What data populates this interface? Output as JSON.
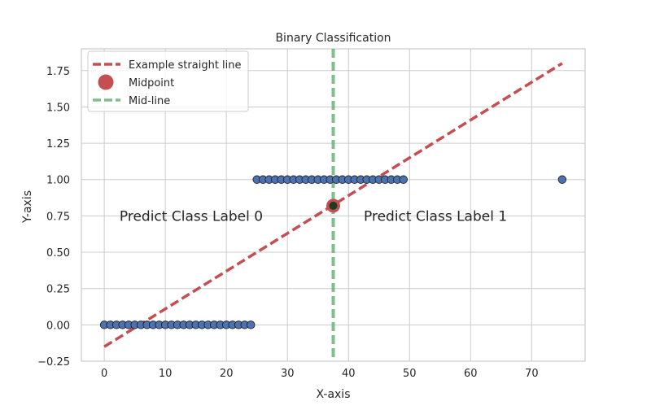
{
  "chart_data": {
    "type": "scatter",
    "title": "Binary Classification",
    "xlabel": "X-axis",
    "ylabel": "Y-axis",
    "xlim": [
      -3.75,
      78.75
    ],
    "ylim": [
      -0.25,
      1.9
    ],
    "x_ticks": [
      0,
      10,
      20,
      30,
      40,
      50,
      60,
      70
    ],
    "x_tick_labels": [
      "0",
      "10",
      "20",
      "30",
      "40",
      "50",
      "60",
      "70"
    ],
    "y_ticks": [
      -0.25,
      0.0,
      0.25,
      0.5,
      0.75,
      1.0,
      1.25,
      1.5,
      1.75
    ],
    "y_tick_labels": [
      "−0.25",
      "0.00",
      "0.25",
      "0.50",
      "0.75",
      "1.00",
      "1.25",
      "1.50",
      "1.75"
    ],
    "grid": true,
    "legend_position": "top-left",
    "legend": [
      {
        "label": "Example straight line",
        "marker": "dashed-line",
        "color": "#c44e52"
      },
      {
        "label": "Midpoint",
        "marker": "circle",
        "color": "#c44e52"
      },
      {
        "label": "Mid-line",
        "marker": "dashed-line",
        "color": "#55a868"
      }
    ],
    "points": {
      "color": "#4c72b0",
      "edge_color": "#1a1a1a",
      "x": [
        0,
        1,
        2,
        3,
        4,
        5,
        6,
        7,
        8,
        9,
        10,
        11,
        12,
        13,
        14,
        15,
        16,
        17,
        18,
        19,
        20,
        21,
        22,
        23,
        24,
        25,
        26,
        27,
        28,
        29,
        30,
        31,
        32,
        33,
        34,
        35,
        36,
        37,
        38,
        39,
        40,
        41,
        42,
        43,
        44,
        45,
        46,
        47,
        48,
        49,
        75
      ],
      "y": [
        0,
        0,
        0,
        0,
        0,
        0,
        0,
        0,
        0,
        0,
        0,
        0,
        0,
        0,
        0,
        0,
        0,
        0,
        0,
        0,
        0,
        0,
        0,
        0,
        0,
        1,
        1,
        1,
        1,
        1,
        1,
        1,
        1,
        1,
        1,
        1,
        1,
        1,
        1,
        1,
        1,
        1,
        1,
        1,
        1,
        1,
        1,
        1,
        1,
        1,
        1
      ]
    },
    "line": {
      "x": [
        0,
        75
      ],
      "y": [
        -0.15,
        1.8
      ],
      "color": "#c44e52",
      "style": "dashed"
    },
    "midpoint": {
      "x": 37.5,
      "y": 0.82,
      "color": "#c44e52",
      "inner_color": "#1b3d20"
    },
    "midline": {
      "x": 37.5,
      "color": "#55a868",
      "style": "dashed"
    },
    "annotations": [
      {
        "text": "Predict Class Label 0",
        "x": 2.5,
        "y": 0.75
      },
      {
        "text": "Predict Class Label 1",
        "x": 42.5,
        "y": 0.75
      }
    ]
  }
}
